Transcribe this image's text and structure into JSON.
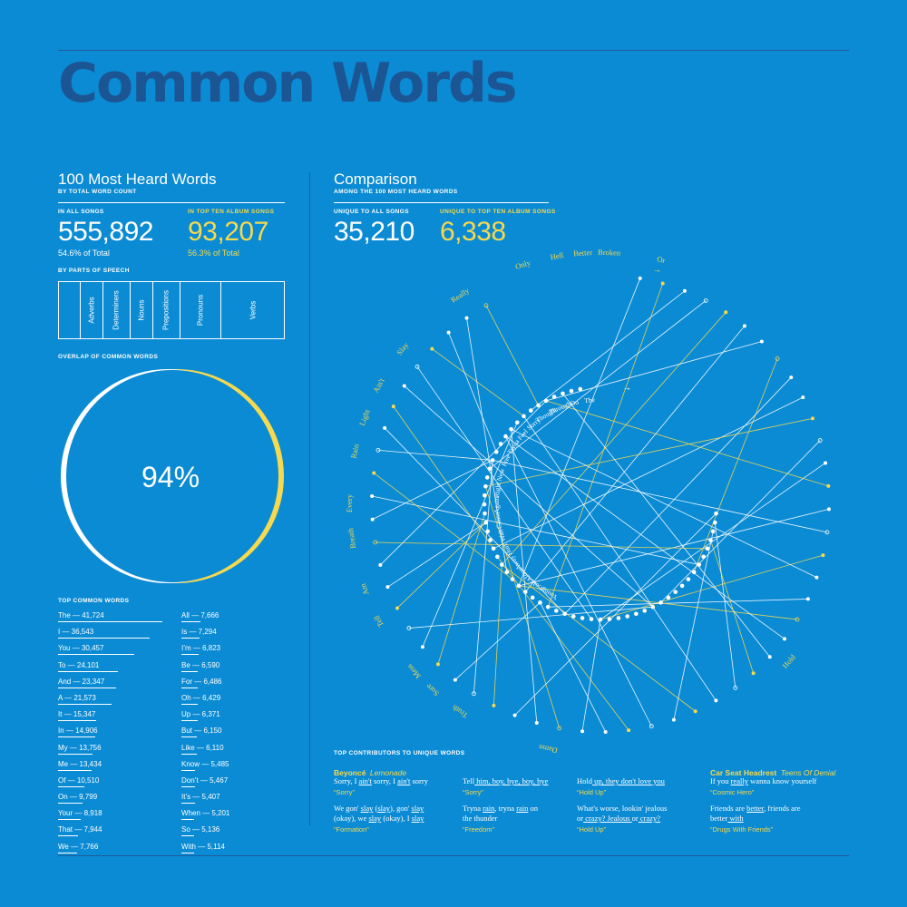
{
  "title": "Common Words",
  "left": {
    "heading": "100 Most Heard Words",
    "subheading": "BY TOTAL WORD COUNT",
    "all_songs": {
      "label": "IN ALL SONGS",
      "value": "555,892",
      "share": "54.6% of Total"
    },
    "top_ten": {
      "label": "IN TOP TEN ALBUM SONGS",
      "value": "93,207",
      "share": "56.3% of Total"
    },
    "parts_label": "BY PARTS OF SPEECH",
    "overlap_label": "OVERLAP OF COMMON WORDS",
    "overlap_value": "94%",
    "top_words_label": "TOP COMMON WORDS"
  },
  "right": {
    "heading": "Comparison",
    "subheading": "AMONG THE 100 MOST HEARD WORDS",
    "unique_all": {
      "label": "UNIQUE TO ALL SONGS",
      "value": "35,210"
    },
    "unique_top": {
      "label": "UNIQUE TO TOP TEN ALBUM SONGS",
      "value": "6,338"
    },
    "contributors_label": "TOP CONTRIBUTORS TO UNIQUE WORDS"
  },
  "parts_of_speech": [
    {
      "label": "Adverbs",
      "share": 0.1
    },
    {
      "label": "Determiners",
      "share": 0.12
    },
    {
      "label": "Nouns",
      "share": 0.1
    },
    {
      "label": "Prepositions",
      "share": 0.12
    },
    {
      "label": "Pronouns",
      "share": 0.18
    },
    {
      "label": "Verbs",
      "share": 0.29
    }
  ],
  "colors": {
    "background": "#0b8bd4",
    "title": "#1c5594",
    "yellow": "#f5d94e",
    "white": "#ffffff"
  },
  "chart_data": [
    {
      "type": "bar",
      "title": "TOP COMMON WORDS",
      "categories": [
        "The",
        "I",
        "You",
        "To",
        "And",
        "A",
        "It",
        "In",
        "My",
        "Me",
        "Of",
        "On",
        "Your",
        "That",
        "We",
        "All",
        "Is",
        "I'm",
        "Be",
        "For",
        "Oh",
        "Up",
        "But",
        "Like",
        "Know",
        "Don't",
        "It's",
        "When",
        "So",
        "With"
      ],
      "values": [
        41724,
        36543,
        30457,
        24101,
        23347,
        21573,
        15347,
        14906,
        13756,
        13434,
        10510,
        9799,
        8918,
        7944,
        7766,
        7666,
        7294,
        6823,
        6590,
        6486,
        6429,
        6371,
        6150,
        6110,
        5485,
        5467,
        5407,
        5201,
        5136,
        5114
      ]
    },
    {
      "type": "pie",
      "title": "OVERLAP OF COMMON WORDS",
      "categories": [
        "Overlap"
      ],
      "values": [
        94
      ]
    }
  ],
  "top_words_display": [
    "The — 41,724",
    "I — 36,543",
    "You — 30,457",
    "To — 24,101",
    "And — 23,347",
    "A — 21,573",
    "It — 15,347",
    "In — 14,906",
    "My — 13,756",
    "Me — 13,434",
    "Of — 10,510",
    "On — 9,799",
    "Your — 8,918",
    "That — 7,944",
    "We — 7,766",
    "All — 7,666",
    "Is — 7,294",
    "I’m — 6,823",
    "Be — 6,590",
    "For — 6,486",
    "Oh — 6,429",
    "Up — 6,371",
    "But — 6,150",
    "Like — 6,110",
    "Know — 5,485",
    "Don’t — 5,467",
    "It’s — 5,407",
    "When — 5,201",
    "So — 5,136",
    "With — 5,114"
  ],
  "radial": {
    "outer_words_visible": [
      "Or",
      "Broken",
      "Better",
      "Hell",
      "Only",
      "Really",
      "Slay",
      "Ain't",
      "Light",
      "Rain",
      "Every",
      "Breath",
      "Am",
      "Tell",
      "Mess",
      "Sure",
      "Truth",
      "Damn",
      "Hold"
    ],
    "inner_words_visible": [
      "The",
      "Do",
      "Through",
      "Thought",
      "Sorry",
      "Feel",
      "Tryna",
      "Free",
      "New",
      "Right",
      "Again",
      "Cause",
      "Wait",
      "Hurt",
      "Away",
      "Alone",
      "Cold",
      "Young"
    ],
    "arrow_glyph": "→"
  },
  "contributors": [
    {
      "artist": "Beyoncé",
      "album": "Lemonade"
    },
    {
      "artist": "Car Seat Headrest",
      "album": "Teens Of Denial"
    }
  ],
  "quotes": {
    "c1a": [
      "Sorry, I ",
      "ain't",
      " sorry, I ",
      "ain't",
      " sorry"
    ],
    "c1a_src": "“Sorry”",
    "c1b_l1": [
      "We gon' ",
      "slay",
      " (",
      "slay",
      "), gon' ",
      "slay"
    ],
    "c1b_l2": [
      "(okay), we ",
      "slay",
      " (okay), I ",
      "slay"
    ],
    "c1b_src": "“Formation”",
    "c2a": [
      "Tell",
      " him, boy, bye, boy, bye"
    ],
    "c2a_src": "“Sorry”",
    "c2b_l1": [
      "Tryna ",
      "rain",
      ", tryna ",
      "rain",
      " on"
    ],
    "c2b_l2": "the thunder",
    "c2b_src": "“Freedom”",
    "c3a": [
      "Hold",
      " up, they don't love you"
    ],
    "c3a_src": "“Hold Up”",
    "c3b_l1": "What's worse, lookin' jealous",
    "c3b_l2": [
      "or",
      " crazy? Jealous ",
      "or",
      " crazy?"
    ],
    "c3b_src": "“Hold Up”",
    "c4a": [
      "If you ",
      "really",
      " wanna know yourself"
    ],
    "c4a_src": "“Cosmic Hero”",
    "c4b_l1": [
      "Friends are ",
      "better",
      ", friends are"
    ],
    "c4b_l2": [
      "better",
      " with"
    ],
    "c4b_src": "“Drugs With Friends”"
  }
}
